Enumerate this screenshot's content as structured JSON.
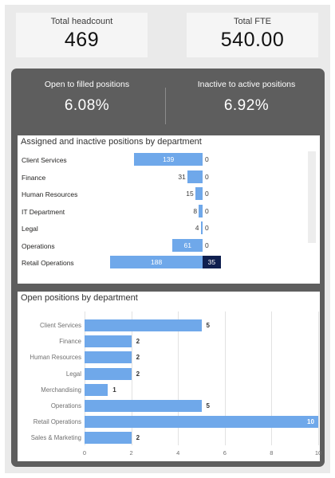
{
  "kpis": {
    "headcount": {
      "label": "Total headcount",
      "value": "469"
    },
    "fte": {
      "label": "Total FTE",
      "value": "540.00"
    }
  },
  "stats": {
    "open_to_filled": {
      "label": "Open to filled positions",
      "value": "6.08%"
    },
    "inactive_to_active": {
      "label": "Inactive to active positions",
      "value": "6.92%"
    }
  },
  "assigned_chart": {
    "title": "Assigned and inactive positions by department",
    "rows": [
      {
        "dept": "Client Services",
        "assigned": 139,
        "inactive": 0
      },
      {
        "dept": "Finance",
        "assigned": 31,
        "inactive": 0
      },
      {
        "dept": "Human Resources",
        "assigned": 15,
        "inactive": 0
      },
      {
        "dept": "IT Department",
        "assigned": 8,
        "inactive": 0
      },
      {
        "dept": "Legal",
        "assigned": 4,
        "inactive": 0
      },
      {
        "dept": "Operations",
        "assigned": 61,
        "inactive": 0
      },
      {
        "dept": "Retail Operations",
        "assigned": 188,
        "inactive": 35
      }
    ],
    "colors": {
      "assigned": "#6fa8ea",
      "inactive": "#0f1f4f"
    }
  },
  "chart_data": {
    "type": "bar",
    "orientation": "horizontal",
    "title": "Open positions by department",
    "categories": [
      "Client Services",
      "Finance",
      "Human Resources",
      "Legal",
      "Merchandising",
      "Operations",
      "Retail Operations",
      "Sales & Marketing"
    ],
    "values": [
      5,
      2,
      2,
      2,
      1,
      5,
      10,
      2
    ],
    "xlim": [
      0,
      10
    ],
    "xticks": [
      "0",
      "2",
      "4",
      "6",
      "8",
      "10"
    ],
    "grid": true,
    "color": "#6fa8ea"
  }
}
